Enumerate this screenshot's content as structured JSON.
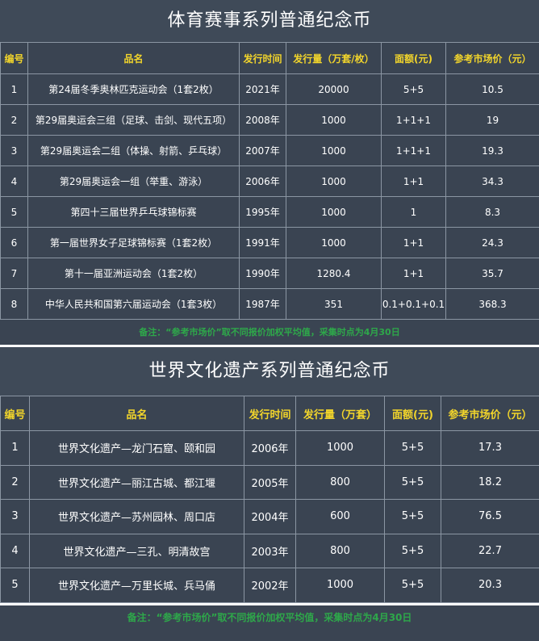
{
  "sports": {
    "title": "体育赛事系列普通纪念币",
    "headers": [
      "编号",
      "品名",
      "发行时间",
      "发行量（万套/枚）",
      "面额(元)",
      "参考市场价（元）"
    ],
    "rows": [
      [
        "1",
        "第24届冬季奥林匹克运动会（1套2枚）",
        "2021年",
        "20000",
        "5+5",
        "10.5"
      ],
      [
        "2",
        "第29届奥运会三组（足球、击剑、现代五项）",
        "2008年",
        "1000",
        "1+1+1",
        "19"
      ],
      [
        "3",
        "第29届奥运会二组（体操、射箭、乒乓球）",
        "2007年",
        "1000",
        "1+1+1",
        "19.3"
      ],
      [
        "4",
        "第29届奥运会一组（举重、游泳）",
        "2006年",
        "1000",
        "1+1",
        "34.3"
      ],
      [
        "5",
        "第四十三届世界乒乓球锦标赛",
        "1995年",
        "1000",
        "1",
        "8.3"
      ],
      [
        "6",
        "第一届世界女子足球锦标赛（1套2枚）",
        "1991年",
        "1000",
        "1+1",
        "24.3"
      ],
      [
        "7",
        "第十一届亚洲运动会（1套2枚）",
        "1990年",
        "1280.4",
        "1+1",
        "35.7"
      ],
      [
        "8",
        "中华人民共和国第六届运动会（1套3枚）",
        "1987年",
        "351",
        "0.1+0.1+0.1",
        "368.3"
      ]
    ],
    "note": "备注：“参考市场价”取不同报价加权平均值，采集时点为4月30日"
  },
  "heritage": {
    "title": "世界文化遗产系列普通纪念币",
    "headers": [
      "编号",
      "品名",
      "发行时间",
      "发行量（万套）",
      "面额(元)",
      "参考市场价（元）"
    ],
    "rows": [
      [
        "1",
        "世界文化遗产—龙门石窟、颐和园",
        "2006年",
        "1000",
        "5+5",
        "17.3"
      ],
      [
        "2",
        "世界文化遗产—丽江古城、都江堰",
        "2005年",
        "800",
        "5+5",
        "18.2"
      ],
      [
        "3",
        "世界文化遗产—苏州园林、周口店",
        "2004年",
        "600",
        "5+5",
        "76.5"
      ],
      [
        "4",
        "世界文化遗产—三孔、明清故宫",
        "2003年",
        "800",
        "5+5",
        "22.7"
      ],
      [
        "5",
        "世界文化遗产—万里长城、兵马俑",
        "2002年",
        "1000",
        "5+5",
        "20.3"
      ]
    ],
    "note": "备注：“参考市场价”取不同报价加权平均值，采集时点为4月30日"
  }
}
